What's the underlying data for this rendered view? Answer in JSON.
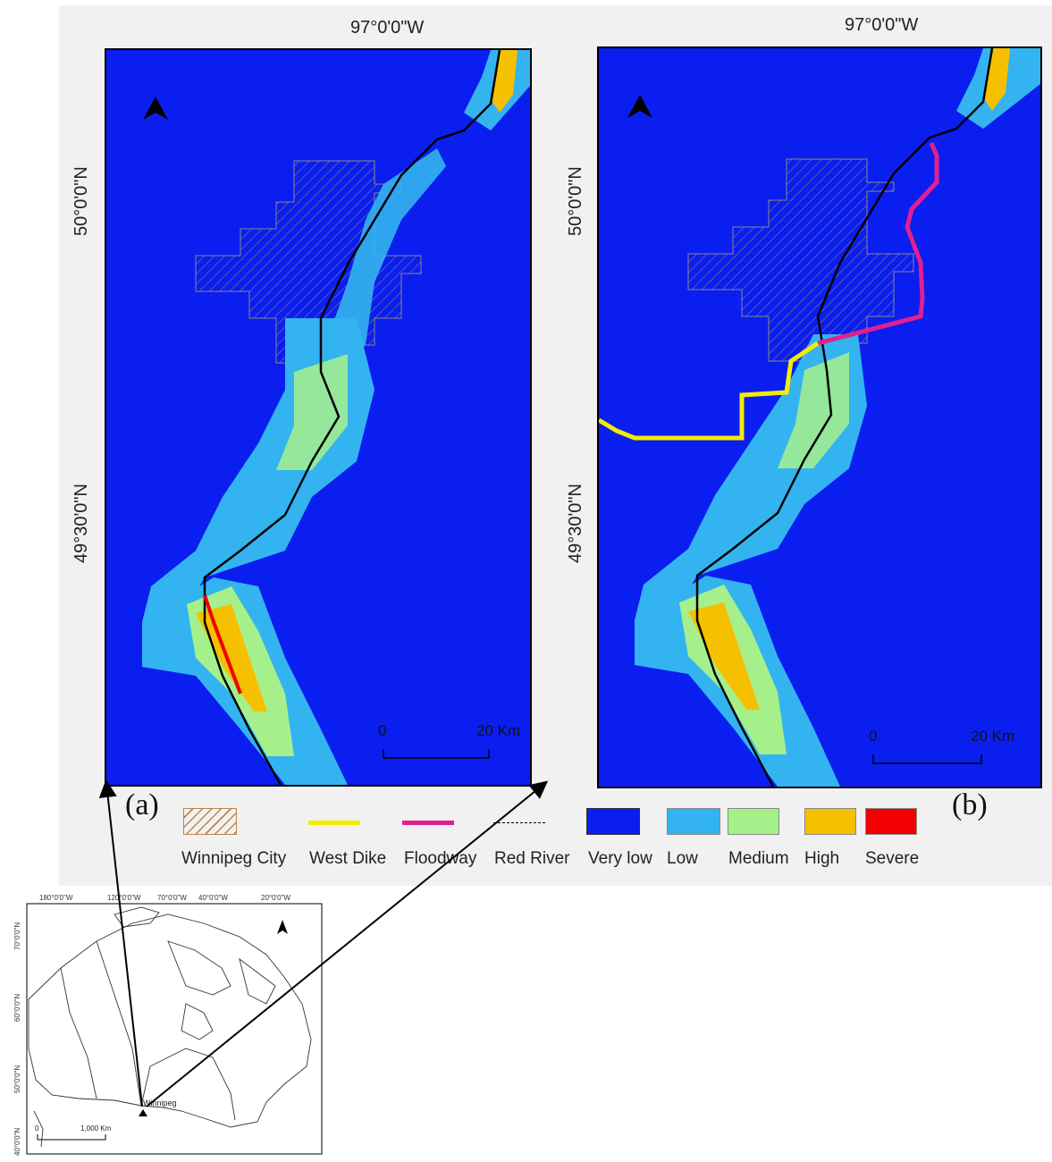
{
  "panel_a": {
    "label": "(a)",
    "lon_label": "97°0'0\"W",
    "lat_labels": [
      "50°0'0\"N",
      "49°30'0\"N"
    ],
    "scale": {
      "zero": "0",
      "end": "20 Km"
    },
    "north_label": "N"
  },
  "panel_b": {
    "label": "(b)",
    "lon_label": "97°0'0\"W",
    "lat_labels": [
      "50°0'0\"N",
      "49°30'0\"N"
    ],
    "scale": {
      "zero": "0",
      "end": "20 Km"
    },
    "north_label": "N"
  },
  "legend": [
    {
      "label": "Winnipeg City",
      "kind": "hatch",
      "color": "#b8874a"
    },
    {
      "label": "West Dike",
      "kind": "line",
      "color": "#f2ec00"
    },
    {
      "label": "Floodway",
      "kind": "line",
      "color": "#e0208e"
    },
    {
      "label": "Red River",
      "kind": "dash",
      "color": "#000000"
    },
    {
      "label": "Very low",
      "kind": "box",
      "color": "#0a1ef0"
    },
    {
      "label": "Low",
      "kind": "box",
      "color": "#33b4f0"
    },
    {
      "label": "Medium",
      "kind": "box",
      "color": "#a6f08c"
    },
    {
      "label": "High",
      "kind": "box",
      "color": "#f5c000"
    },
    {
      "label": "Severe",
      "kind": "box",
      "color": "#f00000"
    }
  ],
  "inset": {
    "lon_labels": [
      "180°0'0\"W",
      "120°0'0\"W",
      "70°0'0\"W",
      "40°0'0\"W",
      "20°0'0\"W"
    ],
    "lat_labels": [
      "70°0'0\"N",
      "60°0'0\"N",
      "50°0'0\"N",
      "40°0'0\"N"
    ],
    "city_label": "Winnipeg",
    "scale": {
      "zero": "0",
      "end": "1,000 Km"
    }
  }
}
